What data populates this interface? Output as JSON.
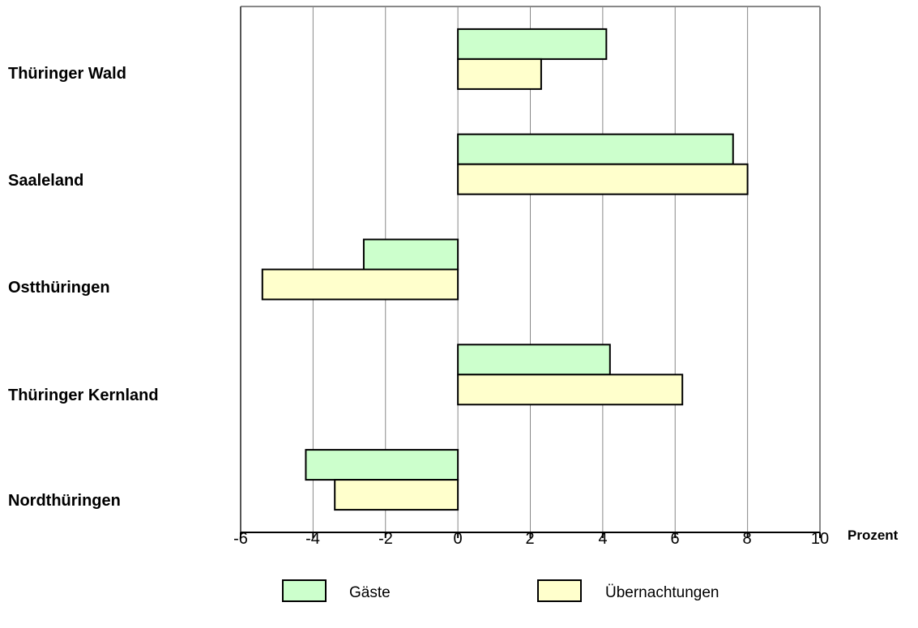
{
  "chart_data": {
    "type": "bar",
    "orientation": "horizontal",
    "categories": [
      "Thüringer Wald",
      "Saaleland",
      "Ostthüringen",
      "Thüringer Kernland",
      "Nordthüringen"
    ],
    "series": [
      {
        "name": "Gäste",
        "color": "#ccffcc",
        "values": [
          4.1,
          7.6,
          -2.6,
          4.2,
          -4.2
        ]
      },
      {
        "name": "Übernachtungen",
        "color": "#ffffcc",
        "values": [
          2.3,
          8.0,
          -5.4,
          6.2,
          -3.4
        ]
      }
    ],
    "xlim": [
      -6,
      10
    ],
    "xticks": [
      "-6",
      "-4",
      "-2",
      "0",
      "2",
      "4",
      "6",
      "8",
      "10"
    ],
    "xlabel": "Prozent",
    "grid": "vertical",
    "legend_position": "bottom"
  }
}
